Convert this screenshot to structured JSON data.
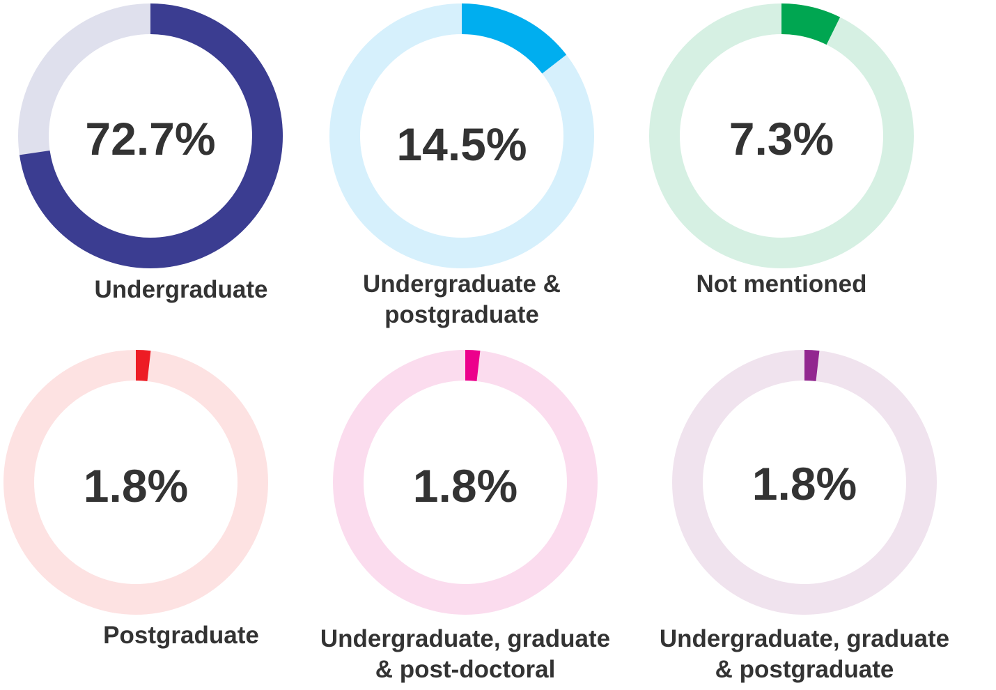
{
  "chart_data": [
    {
      "type": "pie",
      "value": 72.7,
      "value_label": "72.7%",
      "label": "Undergraduate",
      "color": "#3b3d91",
      "track_color": "#dfe0ed"
    },
    {
      "type": "pie",
      "value": 14.5,
      "value_label": "14.5%",
      "label": "Undergraduate &\npostgraduate",
      "color": "#00aeef",
      "track_color": "#d6f0fc"
    },
    {
      "type": "pie",
      "value": 7.3,
      "value_label": "7.3%",
      "label": "Not mentioned",
      "color": "#00a651",
      "track_color": "#d6f0e3"
    },
    {
      "type": "pie",
      "value": 1.8,
      "value_label": "1.8%",
      "label": "Postgraduate",
      "color": "#ed1c24",
      "track_color": "#fde2e2"
    },
    {
      "type": "pie",
      "value": 1.8,
      "value_label": "1.8%",
      "label": "Undergraduate, graduate\n& post-doctoral",
      "color": "#ec008c",
      "track_color": "#fbdcee"
    },
    {
      "type": "pie",
      "value": 1.8,
      "value_label": "1.8%",
      "label": "Undergraduate, graduate\n& postgraduate",
      "color": "#92278f",
      "track_color": "#f0e3ee"
    }
  ]
}
